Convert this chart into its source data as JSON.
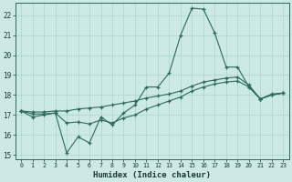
{
  "xlabel": "Humidex (Indice chaleur)",
  "x": [
    0,
    1,
    2,
    3,
    4,
    5,
    6,
    7,
    8,
    9,
    10,
    11,
    12,
    13,
    14,
    15,
    16,
    17,
    18,
    19,
    20,
    21,
    22,
    23
  ],
  "line1": [
    17.2,
    16.9,
    17.0,
    17.1,
    15.1,
    15.9,
    15.6,
    16.9,
    16.5,
    17.1,
    17.5,
    18.4,
    18.4,
    19.1,
    21.0,
    22.35,
    22.3,
    21.1,
    19.4,
    19.4,
    18.4,
    17.8,
    18.0,
    18.1
  ],
  "line2": [
    17.2,
    17.15,
    17.15,
    17.2,
    17.2,
    17.3,
    17.35,
    17.4,
    17.5,
    17.6,
    17.7,
    17.85,
    17.95,
    18.05,
    18.2,
    18.45,
    18.65,
    18.75,
    18.85,
    18.9,
    18.5,
    17.8,
    18.05,
    18.1
  ],
  "line3": [
    17.2,
    17.05,
    17.05,
    17.1,
    16.6,
    16.65,
    16.55,
    16.75,
    16.6,
    16.85,
    17.0,
    17.3,
    17.5,
    17.7,
    17.9,
    18.2,
    18.4,
    18.55,
    18.65,
    18.7,
    18.4,
    17.8,
    18.0,
    18.1
  ],
  "bg_color": "#cce9e5",
  "grid_color": "#aad4cf",
  "line_color": "#2a6b5a",
  "ylim": [
    14.8,
    22.6
  ],
  "yticks": [
    15,
    16,
    17,
    18,
    19,
    20,
    21,
    22
  ],
  "xlim": [
    -0.5,
    23.5
  ],
  "xticks": [
    0,
    1,
    2,
    3,
    4,
    5,
    6,
    7,
    8,
    9,
    10,
    11,
    12,
    13,
    14,
    15,
    16,
    17,
    18,
    19,
    20,
    21,
    22,
    23
  ]
}
